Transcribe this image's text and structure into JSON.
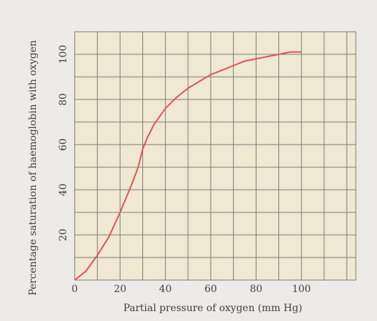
{
  "chart_data": {
    "type": "line",
    "title": "",
    "xlabel": "Partial pressure of oxygen (mm Hg)",
    "ylabel": "Percentage saturation of haemoglobin with oxygen",
    "x_ticks": [
      0,
      20,
      40,
      60,
      80,
      100
    ],
    "y_ticks": [
      20,
      40,
      60,
      80,
      100
    ],
    "xlim": [
      0,
      124
    ],
    "ylim": [
      0,
      110
    ],
    "grid": true,
    "grid_step_x": 10,
    "grid_step_y": 10,
    "series": [
      {
        "color": "#e0505a",
        "points": [
          [
            0,
            0
          ],
          [
            5,
            4
          ],
          [
            10,
            11
          ],
          [
            15,
            19
          ],
          [
            20,
            30
          ],
          [
            25,
            42
          ],
          [
            28,
            50
          ],
          [
            30,
            58
          ],
          [
            32,
            63
          ],
          [
            35,
            69
          ],
          [
            40,
            76
          ],
          [
            45,
            81
          ],
          [
            50,
            85
          ],
          [
            55,
            88
          ],
          [
            60,
            91
          ],
          [
            65,
            93
          ],
          [
            70,
            95
          ],
          [
            75,
            97
          ],
          [
            80,
            98
          ],
          [
            85,
            99
          ],
          [
            90,
            100
          ],
          [
            95,
            101
          ],
          [
            100,
            101
          ]
        ]
      }
    ]
  },
  "colors": {
    "paper": "#ecebe8",
    "plot_bg": "#efe8d2",
    "grid": "#7a7a7a",
    "curve": "#e0505a",
    "text": "#3f3f3f"
  }
}
